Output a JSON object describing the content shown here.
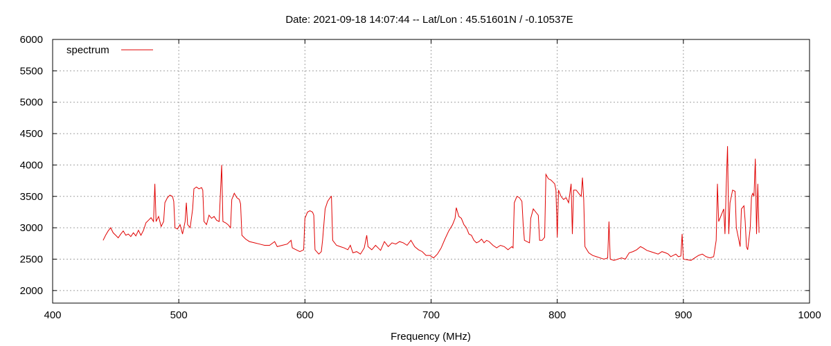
{
  "chart_data": {
    "type": "line",
    "title": "Date: 2021-09-18 14:07:44  --  Lat/Lon : 45.51601N / -0.10537E",
    "xlabel": "Frequency (MHz)",
    "ylabel": "",
    "xlim": [
      400,
      1000
    ],
    "ylim": [
      1800,
      6000
    ],
    "xticks": [
      400,
      500,
      600,
      700,
      800,
      900,
      1000
    ],
    "yticks": [
      2000,
      2500,
      3000,
      3500,
      4000,
      4500,
      5000,
      5500,
      6000
    ],
    "grid": true,
    "legend_position": "top-left",
    "series": [
      {
        "name": "spectrum",
        "color": "#e00000",
        "points": [
          [
            440,
            2800
          ],
          [
            442,
            2880
          ],
          [
            444,
            2950
          ],
          [
            446,
            3000
          ],
          [
            448,
            2920
          ],
          [
            450,
            2880
          ],
          [
            452,
            2840
          ],
          [
            454,
            2900
          ],
          [
            456,
            2950
          ],
          [
            458,
            2880
          ],
          [
            460,
            2900
          ],
          [
            462,
            2860
          ],
          [
            464,
            2920
          ],
          [
            466,
            2870
          ],
          [
            468,
            2960
          ],
          [
            470,
            2880
          ],
          [
            472,
            2960
          ],
          [
            474,
            3080
          ],
          [
            476,
            3120
          ],
          [
            478,
            3160
          ],
          [
            480,
            3100
          ],
          [
            481,
            3700
          ],
          [
            482,
            3100
          ],
          [
            484,
            3180
          ],
          [
            486,
            3020
          ],
          [
            488,
            3100
          ],
          [
            489,
            3400
          ],
          [
            491,
            3480
          ],
          [
            493,
            3520
          ],
          [
            495,
            3500
          ],
          [
            496,
            3420
          ],
          [
            497,
            3000
          ],
          [
            499,
            2980
          ],
          [
            501,
            3050
          ],
          [
            503,
            2900
          ],
          [
            505,
            3100
          ],
          [
            506,
            3400
          ],
          [
            507,
            3050
          ],
          [
            509,
            3000
          ],
          [
            511,
            3300
          ],
          [
            512,
            3620
          ],
          [
            514,
            3650
          ],
          [
            516,
            3620
          ],
          [
            518,
            3640
          ],
          [
            519,
            3600
          ],
          [
            520,
            3100
          ],
          [
            522,
            3050
          ],
          [
            524,
            3200
          ],
          [
            526,
            3150
          ],
          [
            528,
            3180
          ],
          [
            530,
            3120
          ],
          [
            532,
            3100
          ],
          [
            534,
            4000
          ],
          [
            535,
            3100
          ],
          [
            537,
            3080
          ],
          [
            539,
            3050
          ],
          [
            541,
            3000
          ],
          [
            542,
            3450
          ],
          [
            544,
            3550
          ],
          [
            546,
            3480
          ],
          [
            548,
            3450
          ],
          [
            549,
            3380
          ],
          [
            550,
            2880
          ],
          [
            553,
            2820
          ],
          [
            556,
            2780
          ],
          [
            560,
            2760
          ],
          [
            564,
            2740
          ],
          [
            568,
            2720
          ],
          [
            572,
            2720
          ],
          [
            576,
            2780
          ],
          [
            578,
            2700
          ],
          [
            582,
            2720
          ],
          [
            586,
            2740
          ],
          [
            589,
            2800
          ],
          [
            590,
            2680
          ],
          [
            593,
            2650
          ],
          [
            596,
            2620
          ],
          [
            598,
            2640
          ],
          [
            599,
            2650
          ],
          [
            600,
            3150
          ],
          [
            602,
            3250
          ],
          [
            604,
            3270
          ],
          [
            606,
            3250
          ],
          [
            607,
            3200
          ],
          [
            608,
            2650
          ],
          [
            611,
            2580
          ],
          [
            613,
            2620
          ],
          [
            614,
            2800
          ],
          [
            616,
            3300
          ],
          [
            618,
            3420
          ],
          [
            620,
            3480
          ],
          [
            621,
            3500
          ],
          [
            622,
            2800
          ],
          [
            625,
            2720
          ],
          [
            628,
            2700
          ],
          [
            631,
            2680
          ],
          [
            634,
            2650
          ],
          [
            636,
            2720
          ],
          [
            638,
            2600
          ],
          [
            641,
            2620
          ],
          [
            644,
            2580
          ],
          [
            647,
            2680
          ],
          [
            649,
            2880
          ],
          [
            650,
            2700
          ],
          [
            653,
            2650
          ],
          [
            656,
            2720
          ],
          [
            658,
            2680
          ],
          [
            660,
            2640
          ],
          [
            663,
            2780
          ],
          [
            666,
            2700
          ],
          [
            669,
            2760
          ],
          [
            672,
            2740
          ],
          [
            675,
            2780
          ],
          [
            678,
            2760
          ],
          [
            681,
            2720
          ],
          [
            684,
            2800
          ],
          [
            687,
            2700
          ],
          [
            690,
            2650
          ],
          [
            693,
            2620
          ],
          [
            696,
            2560
          ],
          [
            699,
            2560
          ],
          [
            702,
            2520
          ],
          [
            705,
            2580
          ],
          [
            708,
            2680
          ],
          [
            711,
            2820
          ],
          [
            714,
            2950
          ],
          [
            717,
            3050
          ],
          [
            719,
            3150
          ],
          [
            720,
            3320
          ],
          [
            722,
            3180
          ],
          [
            724,
            3150
          ],
          [
            726,
            3050
          ],
          [
            728,
            3000
          ],
          [
            730,
            2900
          ],
          [
            732,
            2880
          ],
          [
            734,
            2800
          ],
          [
            736,
            2760
          ],
          [
            738,
            2780
          ],
          [
            740,
            2820
          ],
          [
            742,
            2760
          ],
          [
            744,
            2800
          ],
          [
            746,
            2780
          ],
          [
            749,
            2720
          ],
          [
            752,
            2680
          ],
          [
            755,
            2720
          ],
          [
            758,
            2700
          ],
          [
            761,
            2650
          ],
          [
            764,
            2700
          ],
          [
            765,
            2680
          ],
          [
            766,
            3400
          ],
          [
            768,
            3500
          ],
          [
            770,
            3480
          ],
          [
            772,
            3420
          ],
          [
            773,
            3050
          ],
          [
            774,
            2800
          ],
          [
            776,
            2780
          ],
          [
            778,
            2760
          ],
          [
            779,
            3150
          ],
          [
            781,
            3300
          ],
          [
            783,
            3250
          ],
          [
            785,
            3200
          ],
          [
            786,
            2800
          ],
          [
            788,
            2800
          ],
          [
            790,
            2850
          ],
          [
            791,
            3850
          ],
          [
            793,
            3780
          ],
          [
            795,
            3760
          ],
          [
            797,
            3720
          ],
          [
            798,
            3700
          ],
          [
            799,
            3600
          ],
          [
            800,
            2850
          ],
          [
            801,
            3600
          ],
          [
            803,
            3500
          ],
          [
            805,
            3450
          ],
          [
            807,
            3480
          ],
          [
            809,
            3400
          ],
          [
            811,
            3700
          ],
          [
            812,
            2900
          ],
          [
            813,
            3600
          ],
          [
            815,
            3600
          ],
          [
            817,
            3550
          ],
          [
            819,
            3500
          ],
          [
            820,
            3800
          ],
          [
            821,
            3450
          ],
          [
            822,
            2700
          ],
          [
            825,
            2600
          ],
          [
            828,
            2560
          ],
          [
            831,
            2540
          ],
          [
            834,
            2520
          ],
          [
            837,
            2500
          ],
          [
            840,
            2520
          ],
          [
            841,
            3100
          ],
          [
            842,
            2500
          ],
          [
            845,
            2480
          ],
          [
            848,
            2500
          ],
          [
            851,
            2520
          ],
          [
            854,
            2500
          ],
          [
            857,
            2600
          ],
          [
            860,
            2620
          ],
          [
            863,
            2650
          ],
          [
            866,
            2700
          ],
          [
            868,
            2680
          ],
          [
            871,
            2640
          ],
          [
            874,
            2620
          ],
          [
            877,
            2600
          ],
          [
            880,
            2580
          ],
          [
            883,
            2620
          ],
          [
            886,
            2600
          ],
          [
            888,
            2580
          ],
          [
            890,
            2540
          ],
          [
            892,
            2560
          ],
          [
            894,
            2580
          ],
          [
            896,
            2540
          ],
          [
            898,
            2550
          ],
          [
            899,
            2900
          ],
          [
            900,
            2500
          ],
          [
            903,
            2490
          ],
          [
            906,
            2480
          ],
          [
            909,
            2520
          ],
          [
            912,
            2560
          ],
          [
            915,
            2580
          ],
          [
            918,
            2540
          ],
          [
            921,
            2520
          ],
          [
            924,
            2540
          ],
          [
            926,
            2800
          ],
          [
            927,
            3700
          ],
          [
            928,
            3100
          ],
          [
            930,
            3200
          ],
          [
            932,
            3300
          ],
          [
            933,
            2900
          ],
          [
            934,
            3700
          ],
          [
            935,
            4300
          ],
          [
            936,
            2900
          ],
          [
            937,
            3400
          ],
          [
            939,
            3600
          ],
          [
            941,
            3580
          ],
          [
            942,
            3000
          ],
          [
            944,
            2800
          ],
          [
            945,
            2700
          ],
          [
            946,
            3300
          ],
          [
            948,
            3350
          ],
          [
            949,
            3100
          ],
          [
            950,
            2700
          ],
          [
            951,
            2650
          ],
          [
            953,
            3000
          ],
          [
            954,
            3500
          ],
          [
            955,
            3550
          ],
          [
            956,
            3500
          ],
          [
            957,
            4100
          ],
          [
            958,
            2900
          ],
          [
            959,
            3700
          ],
          [
            960,
            2920
          ]
        ]
      }
    ]
  }
}
